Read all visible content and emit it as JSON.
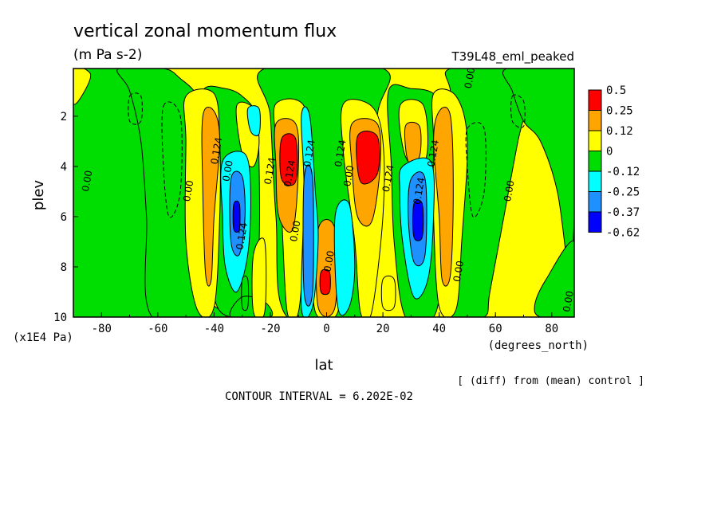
{
  "chart_data": {
    "type": "heatmap",
    "title": "vertical zonal momentum flux",
    "units": "(m Pa s-2)",
    "dataset_label": "T39L48_eml_peaked",
    "xlabel": "lat",
    "xunits": "(degrees_north)",
    "ylabel": "plev",
    "yunits": "(x1E4 Pa)",
    "xlim": [
      -90,
      88
    ],
    "ylim": [
      10,
      0.1
    ],
    "x_ticks": [
      -80,
      -60,
      -40,
      -20,
      0,
      20,
      40,
      60,
      80
    ],
    "y_ticks": [
      2,
      4,
      6,
      8,
      10
    ],
    "colorbar": {
      "labels": [
        "0.5",
        "0.25",
        "0.12",
        "0",
        "-0.12",
        "-0.25",
        "-0.37",
        "-0.62"
      ],
      "colors": [
        "#ff0000",
        "#ffa500",
        "#ffff00",
        "#00dd00",
        "#00ffff",
        "#1e90ff",
        "#0000ff"
      ]
    },
    "fill_colors": {
      "red": "#ff0000",
      "orange": "#ffa500",
      "yellow": "#ffff00",
      "green": "#00dd00",
      "cyan": "#00ffff",
      "blue": "#1e90ff",
      "deepblue": "#0000ff"
    },
    "contour_labels": [
      {
        "text": "0.00",
        "lat": 52,
        "plev": 0.5
      },
      {
        "text": "0.124",
        "lat": -38,
        "plev": 3.4
      },
      {
        "text": "0.00",
        "lat": -34,
        "plev": 4.2
      },
      {
        "text": "0.00",
        "lat": -48,
        "plev": 5.0
      },
      {
        "text": "0.00",
        "lat": -84,
        "plev": 4.6
      },
      {
        "text": "0.124",
        "lat": -29,
        "plev": 6.8
      },
      {
        "text": "0.124",
        "lat": -19,
        "plev": 4.2
      },
      {
        "text": "0.124",
        "lat": -12,
        "plev": 4.3
      },
      {
        "text": "0.124",
        "lat": -5,
        "plev": 3.5
      },
      {
        "text": "0.124",
        "lat": 6,
        "plev": 3.5
      },
      {
        "text": "0.00",
        "lat": 9,
        "plev": 4.4
      },
      {
        "text": "0.00",
        "lat": -10,
        "plev": 6.6
      },
      {
        "text": "0.00",
        "lat": 2,
        "plev": 7.8
      },
      {
        "text": "0.124",
        "lat": 23,
        "plev": 4.5
      },
      {
        "text": "0.124",
        "lat": 34,
        "plev": 5.0
      },
      {
        "text": "0.124",
        "lat": 39,
        "plev": 3.5
      },
      {
        "text": "0.00",
        "lat": 48,
        "plev": 8.2
      },
      {
        "text": "0.00",
        "lat": 66,
        "plev": 5.0
      },
      {
        "text": "0.00",
        "lat": 87,
        "plev": 9.4
      }
    ]
  },
  "footer": {
    "diff_note": "[ (diff) from (mean) control ]",
    "contour_interval": "CONTOUR INTERVAL = 6.202E-02"
  }
}
